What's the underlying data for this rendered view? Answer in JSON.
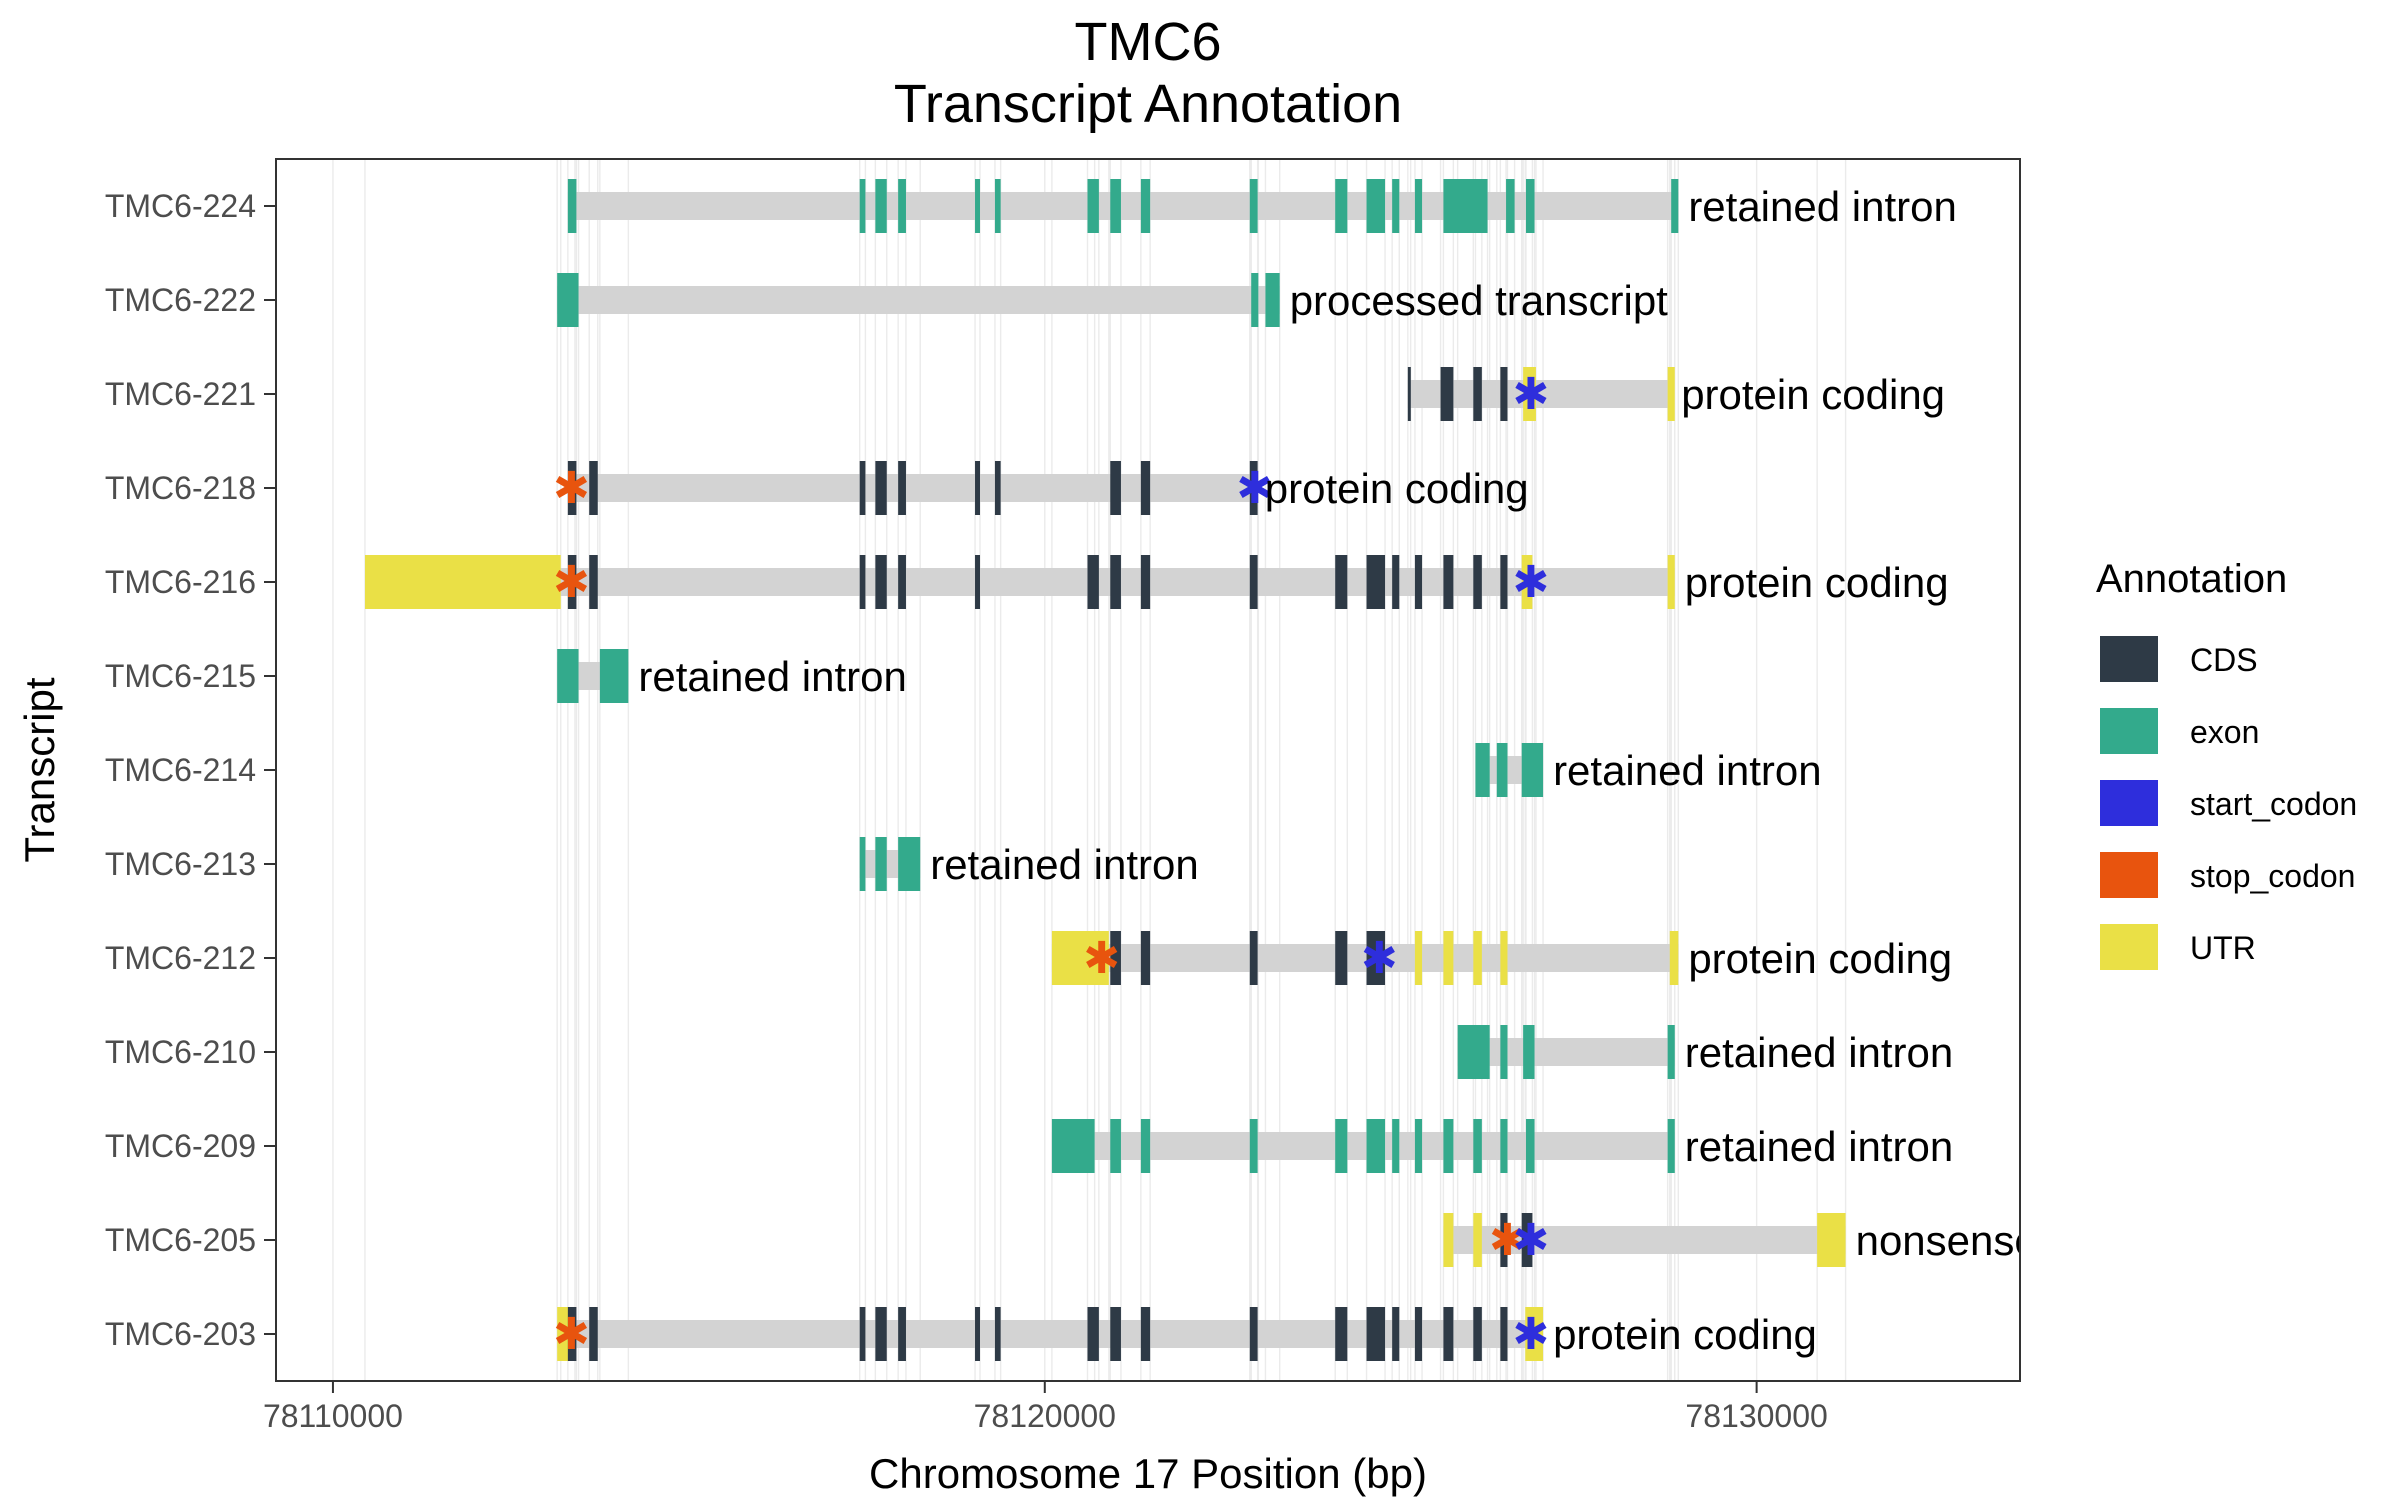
{
  "chart_data": {
    "type": "gene-track",
    "title": "TMC6",
    "subtitle": "Transcript Annotation",
    "xlabel": "Chromosome 17 Position (bp)",
    "ylabel": "Transcript",
    "xlim": [
      78109200,
      78133700
    ],
    "xticks": [
      78110000,
      78120000,
      78130000
    ],
    "xtick_labels": [
      "78110000",
      "78120000",
      "78130000"
    ],
    "grid": true,
    "legend": {
      "title": "Annotation",
      "position": "right",
      "entries": [
        {
          "name": "CDS",
          "color": "#2E3A46"
        },
        {
          "name": "exon",
          "color": "#33AA8C"
        },
        {
          "name": "start_codon",
          "color": "#2E2EDC"
        },
        {
          "name": "stop_codon",
          "color": "#E8540E"
        },
        {
          "name": "UTR",
          "color": "#EAE046"
        }
      ]
    },
    "transcripts": [
      {
        "name": "TMC6-224",
        "label": "retained intron",
        "start": 78113300,
        "end": 78128900,
        "features": [
          {
            "type": "exon",
            "s": 78113300,
            "e": 78113420
          },
          {
            "type": "exon",
            "s": 78117400,
            "e": 78117480
          },
          {
            "type": "exon",
            "s": 78117620,
            "e": 78117780
          },
          {
            "type": "exon",
            "s": 78117940,
            "e": 78118050
          },
          {
            "type": "exon",
            "s": 78119020,
            "e": 78119090
          },
          {
            "type": "exon",
            "s": 78119300,
            "e": 78119380
          },
          {
            "type": "exon",
            "s": 78120600,
            "e": 78120760
          },
          {
            "type": "exon",
            "s": 78120920,
            "e": 78121070
          },
          {
            "type": "exon",
            "s": 78121350,
            "e": 78121480
          },
          {
            "type": "exon",
            "s": 78122880,
            "e": 78122990
          },
          {
            "type": "exon",
            "s": 78124080,
            "e": 78124250
          },
          {
            "type": "exon",
            "s": 78124520,
            "e": 78124780
          },
          {
            "type": "exon",
            "s": 78124880,
            "e": 78124980
          },
          {
            "type": "exon",
            "s": 78125200,
            "e": 78125300
          },
          {
            "type": "exon",
            "s": 78125600,
            "e": 78126220
          },
          {
            "type": "exon",
            "s": 78126480,
            "e": 78126600
          },
          {
            "type": "exon",
            "s": 78126760,
            "e": 78126880
          },
          {
            "type": "exon",
            "s": 78128800,
            "e": 78128900
          }
        ]
      },
      {
        "name": "TMC6-222",
        "label": "processed transcript",
        "start": 78113150,
        "end": 78123300,
        "features": [
          {
            "type": "exon",
            "s": 78113150,
            "e": 78113450
          },
          {
            "type": "exon",
            "s": 78122900,
            "e": 78123000
          },
          {
            "type": "exon",
            "s": 78123100,
            "e": 78123300
          }
        ]
      },
      {
        "name": "TMC6-221",
        "label": "protein coding",
        "start": 78125100,
        "end": 78128800,
        "features": [
          {
            "type": "CDS",
            "s": 78125100,
            "e": 78125140
          },
          {
            "type": "CDS",
            "s": 78125560,
            "e": 78125740
          },
          {
            "type": "CDS",
            "s": 78126020,
            "e": 78126140
          },
          {
            "type": "CDS",
            "s": 78126400,
            "e": 78126500
          },
          {
            "type": "UTR",
            "s": 78126720,
            "e": 78126900
          },
          {
            "type": "UTR",
            "s": 78128750,
            "e": 78128850
          }
        ],
        "start_codons": [
          78126830
        ]
      },
      {
        "name": "TMC6-218",
        "label": "protein coding",
        "start": 78113300,
        "end": 78122950,
        "features": [
          {
            "type": "CDS",
            "s": 78113300,
            "e": 78113420
          },
          {
            "type": "CDS",
            "s": 78113600,
            "e": 78113720
          },
          {
            "type": "CDS",
            "s": 78117400,
            "e": 78117480
          },
          {
            "type": "CDS",
            "s": 78117620,
            "e": 78117780
          },
          {
            "type": "CDS",
            "s": 78117940,
            "e": 78118050
          },
          {
            "type": "CDS",
            "s": 78119020,
            "e": 78119090
          },
          {
            "type": "CDS",
            "s": 78119300,
            "e": 78119380
          },
          {
            "type": "CDS",
            "s": 78120920,
            "e": 78121070
          },
          {
            "type": "CDS",
            "s": 78121350,
            "e": 78121480
          },
          {
            "type": "CDS",
            "s": 78122880,
            "e": 78122990
          }
        ],
        "stop_codons": [
          78113350
        ],
        "start_codons": [
          78122950
        ]
      },
      {
        "name": "TMC6-216",
        "label": "protein coding",
        "start": 78110450,
        "end": 78128850,
        "features": [
          {
            "type": "UTR",
            "s": 78110450,
            "e": 78113200
          },
          {
            "type": "CDS",
            "s": 78113300,
            "e": 78113420
          },
          {
            "type": "CDS",
            "s": 78113600,
            "e": 78113720
          },
          {
            "type": "CDS",
            "s": 78117400,
            "e": 78117480
          },
          {
            "type": "CDS",
            "s": 78117620,
            "e": 78117780
          },
          {
            "type": "CDS",
            "s": 78117940,
            "e": 78118050
          },
          {
            "type": "CDS",
            "s": 78119020,
            "e": 78119090
          },
          {
            "type": "CDS",
            "s": 78120600,
            "e": 78120760
          },
          {
            "type": "CDS",
            "s": 78120920,
            "e": 78121070
          },
          {
            "type": "CDS",
            "s": 78121350,
            "e": 78121480
          },
          {
            "type": "CDS",
            "s": 78122880,
            "e": 78122990
          },
          {
            "type": "CDS",
            "s": 78124080,
            "e": 78124250
          },
          {
            "type": "CDS",
            "s": 78124520,
            "e": 78124780
          },
          {
            "type": "CDS",
            "s": 78124880,
            "e": 78124980
          },
          {
            "type": "CDS",
            "s": 78125200,
            "e": 78125300
          },
          {
            "type": "CDS",
            "s": 78125600,
            "e": 78125740
          },
          {
            "type": "CDS",
            "s": 78126020,
            "e": 78126140
          },
          {
            "type": "CDS",
            "s": 78126400,
            "e": 78126500
          },
          {
            "type": "UTR",
            "s": 78126700,
            "e": 78126850
          },
          {
            "type": "UTR",
            "s": 78128750,
            "e": 78128850
          }
        ],
        "stop_codons": [
          78113350
        ],
        "start_codons": [
          78126830
        ]
      },
      {
        "name": "TMC6-215",
        "label": "retained intron",
        "start": 78113150,
        "end": 78114150,
        "features": [
          {
            "type": "exon",
            "s": 78113150,
            "e": 78113450
          },
          {
            "type": "exon",
            "s": 78113750,
            "e": 78114150
          }
        ]
      },
      {
        "name": "TMC6-214",
        "label": "retained intron",
        "start": 78126050,
        "end": 78127000,
        "features": [
          {
            "type": "exon",
            "s": 78126050,
            "e": 78126250
          },
          {
            "type": "exon",
            "s": 78126350,
            "e": 78126500
          },
          {
            "type": "exon",
            "s": 78126700,
            "e": 78127000
          }
        ]
      },
      {
        "name": "TMC6-213",
        "label": "retained intron",
        "start": 78117400,
        "end": 78118250,
        "features": [
          {
            "type": "exon",
            "s": 78117400,
            "e": 78117480
          },
          {
            "type": "exon",
            "s": 78117620,
            "e": 78117780
          },
          {
            "type": "exon",
            "s": 78117940,
            "e": 78118250
          }
        ]
      },
      {
        "name": "TMC6-212",
        "label": "protein coding",
        "start": 78120100,
        "end": 78128900,
        "features": [
          {
            "type": "UTR",
            "s": 78120100,
            "e": 78120900
          },
          {
            "type": "CDS",
            "s": 78120920,
            "e": 78121070
          },
          {
            "type": "CDS",
            "s": 78121350,
            "e": 78121480
          },
          {
            "type": "CDS",
            "s": 78122880,
            "e": 78122990
          },
          {
            "type": "CDS",
            "s": 78124080,
            "e": 78124250
          },
          {
            "type": "CDS",
            "s": 78124520,
            "e": 78124780
          },
          {
            "type": "UTR",
            "s": 78125200,
            "e": 78125300
          },
          {
            "type": "UTR",
            "s": 78125600,
            "e": 78125740
          },
          {
            "type": "UTR",
            "s": 78126020,
            "e": 78126140
          },
          {
            "type": "UTR",
            "s": 78126400,
            "e": 78126500
          },
          {
            "type": "UTR",
            "s": 78128780,
            "e": 78128900
          }
        ],
        "stop_codons": [
          78120800
        ],
        "start_codons": [
          78124700
        ]
      },
      {
        "name": "TMC6-210",
        "label": "retained intron",
        "start": 78125800,
        "end": 78128850,
        "features": [
          {
            "type": "exon",
            "s": 78125800,
            "e": 78126250
          },
          {
            "type": "exon",
            "s": 78126400,
            "e": 78126500
          },
          {
            "type": "exon",
            "s": 78126720,
            "e": 78126880
          },
          {
            "type": "exon",
            "s": 78128750,
            "e": 78128850
          }
        ]
      },
      {
        "name": "TMC6-209",
        "label": "retained intron",
        "start": 78120100,
        "end": 78128850,
        "features": [
          {
            "type": "exon",
            "s": 78120100,
            "e": 78120700
          },
          {
            "type": "exon",
            "s": 78120920,
            "e": 78121070
          },
          {
            "type": "exon",
            "s": 78121350,
            "e": 78121480
          },
          {
            "type": "exon",
            "s": 78122880,
            "e": 78122990
          },
          {
            "type": "exon",
            "s": 78124080,
            "e": 78124250
          },
          {
            "type": "exon",
            "s": 78124520,
            "e": 78124780
          },
          {
            "type": "exon",
            "s": 78124880,
            "e": 78124980
          },
          {
            "type": "exon",
            "s": 78125200,
            "e": 78125300
          },
          {
            "type": "exon",
            "s": 78125600,
            "e": 78125740
          },
          {
            "type": "exon",
            "s": 78126020,
            "e": 78126140
          },
          {
            "type": "exon",
            "s": 78126400,
            "e": 78126500
          },
          {
            "type": "exon",
            "s": 78126760,
            "e": 78126880
          },
          {
            "type": "exon",
            "s": 78128750,
            "e": 78128850
          }
        ]
      },
      {
        "name": "TMC6-205",
        "label": "nonsense mediated decay",
        "start": 78125600,
        "end": 78131250,
        "features": [
          {
            "type": "UTR",
            "s": 78125600,
            "e": 78125740
          },
          {
            "type": "UTR",
            "s": 78126020,
            "e": 78126140
          },
          {
            "type": "CDS",
            "s": 78126400,
            "e": 78126500
          },
          {
            "type": "CDS",
            "s": 78126700,
            "e": 78126850
          },
          {
            "type": "UTR",
            "s": 78130850,
            "e": 78131250
          }
        ],
        "stop_codons": [
          78126500
        ],
        "start_codons": [
          78126830
        ]
      },
      {
        "name": "TMC6-203",
        "label": "protein coding",
        "start": 78113150,
        "end": 78127000,
        "features": [
          {
            "type": "UTR",
            "s": 78113150,
            "e": 78113400
          },
          {
            "type": "CDS",
            "s": 78113300,
            "e": 78113420
          },
          {
            "type": "CDS",
            "s": 78113600,
            "e": 78113720
          },
          {
            "type": "CDS",
            "s": 78117400,
            "e": 78117480
          },
          {
            "type": "CDS",
            "s": 78117620,
            "e": 78117780
          },
          {
            "type": "CDS",
            "s": 78117940,
            "e": 78118050
          },
          {
            "type": "CDS",
            "s": 78119020,
            "e": 78119090
          },
          {
            "type": "CDS",
            "s": 78119300,
            "e": 78119380
          },
          {
            "type": "CDS",
            "s": 78120600,
            "e": 78120760
          },
          {
            "type": "CDS",
            "s": 78120920,
            "e": 78121070
          },
          {
            "type": "CDS",
            "s": 78121350,
            "e": 78121480
          },
          {
            "type": "CDS",
            "s": 78122880,
            "e": 78122990
          },
          {
            "type": "CDS",
            "s": 78124080,
            "e": 78124250
          },
          {
            "type": "CDS",
            "s": 78124520,
            "e": 78124780
          },
          {
            "type": "CDS",
            "s": 78124880,
            "e": 78124980
          },
          {
            "type": "CDS",
            "s": 78125200,
            "e": 78125300
          },
          {
            "type": "CDS",
            "s": 78125600,
            "e": 78125740
          },
          {
            "type": "CDS",
            "s": 78126020,
            "e": 78126140
          },
          {
            "type": "CDS",
            "s": 78126400,
            "e": 78126500
          },
          {
            "type": "UTR",
            "s": 78126750,
            "e": 78127000
          }
        ],
        "stop_codons": [
          78113350
        ],
        "start_codons": [
          78126830
        ]
      }
    ]
  }
}
